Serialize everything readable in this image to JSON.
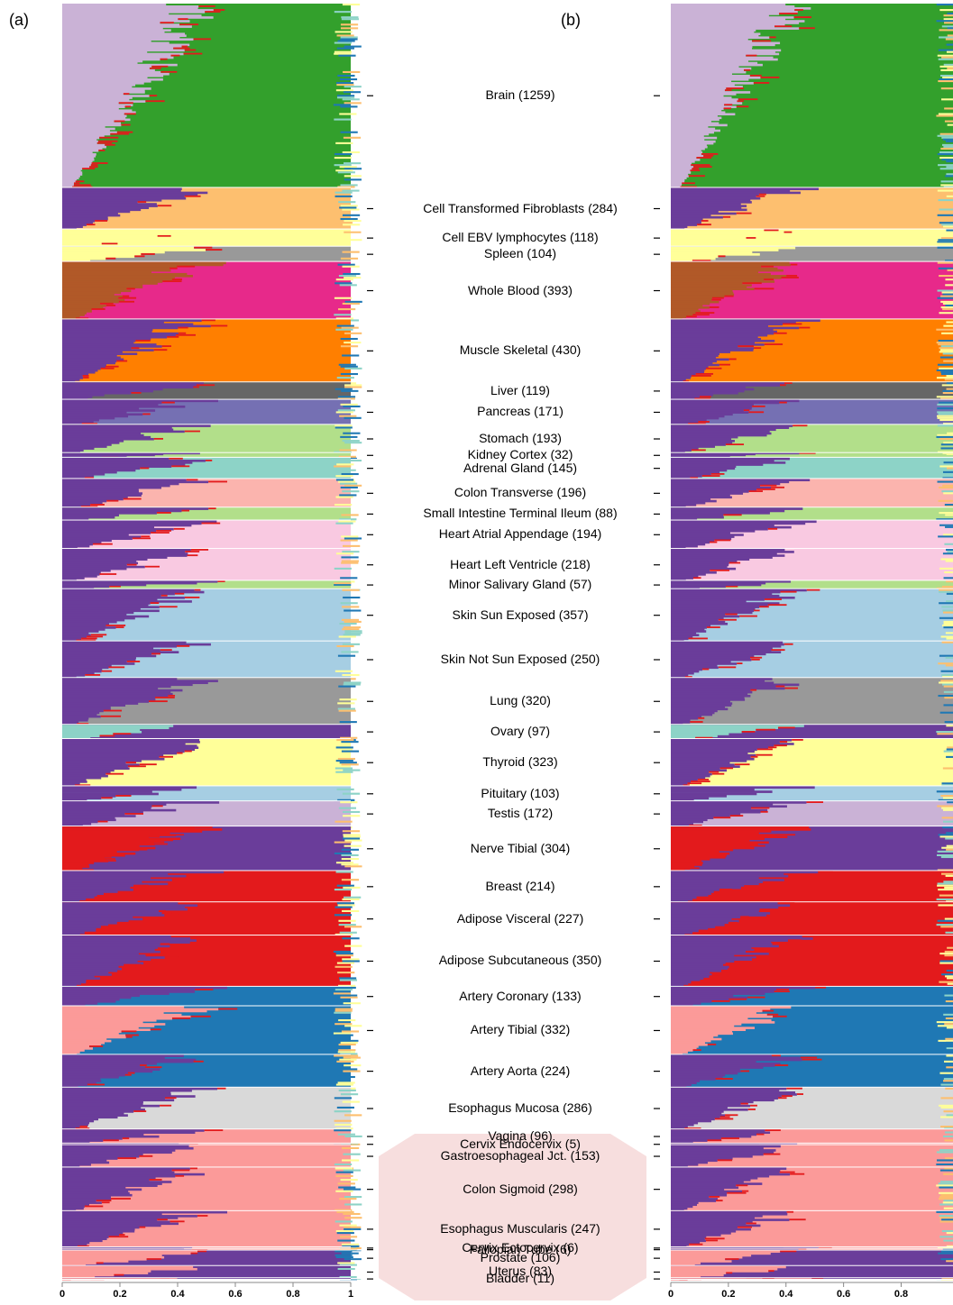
{
  "panel_labels": {
    "a": "(a)",
    "b": "(b)"
  },
  "chart_data": {
    "type": "stacked-bar",
    "orientation": "horizontal",
    "description_of_axes": "x axis: ancestry-style component proportion per sample; rows grouped by tissue",
    "xlim": [
      0,
      1
    ],
    "xticks": [
      "0",
      "0.2",
      "0.4",
      "0.6",
      "0.8",
      "1"
    ],
    "xticks_b": [
      "0",
      "0.2",
      "0.4",
      "0.6",
      "0.8"
    ],
    "component_colors": {
      "green": "#33a02c",
      "lavender": "#cab2d6",
      "light_orange": "#fdbf6f",
      "light_yellow": "#ffff99",
      "gray": "#999999",
      "brown": "#b15928",
      "magenta": "#e7298a",
      "orange": "#ff7f00",
      "dark_gray": "#666666",
      "slate_blue": "#7570b3",
      "light_green": "#b2df8a",
      "teal": "#8dd3c7",
      "pink_light": "#fbb4ae",
      "pink": "#f9c9e1",
      "sky": "#a6cee3",
      "purple": "#6a3d9a",
      "red": "#e31a1c",
      "blue": "#1f78b4",
      "salmon": "#fb9a99",
      "light_gray": "#d9d9d9"
    },
    "tissues": [
      {
        "label": "Brain (1259)",
        "n": 1259,
        "fill": "green",
        "secondary": "lavender"
      },
      {
        "label": "Cell Transformed Fibroblasts (284)",
        "n": 284,
        "fill": "light_orange",
        "secondary": "purple"
      },
      {
        "label": "Cell EBV lymphocytes (118)",
        "n": 118,
        "fill": "light_yellow",
        "secondary": "light_yellow"
      },
      {
        "label": "Spleen (104)",
        "n": 104,
        "fill": "gray",
        "secondary": "light_yellow"
      },
      {
        "label": "Whole Blood (393)",
        "n": 393,
        "fill": "magenta",
        "secondary": "brown"
      },
      {
        "label": "Muscle Skeletal (430)",
        "n": 430,
        "fill": "orange",
        "secondary": "purple"
      },
      {
        "label": "Liver (119)",
        "n": 119,
        "fill": "dark_gray",
        "secondary": "purple"
      },
      {
        "label": "Pancreas (171)",
        "n": 171,
        "fill": "slate_blue",
        "secondary": "purple"
      },
      {
        "label": "Stomach (193)",
        "n": 193,
        "fill": "light_green",
        "secondary": "purple"
      },
      {
        "label": "Kidney Cortex (32)",
        "n": 32,
        "fill": "light_green",
        "secondary": "purple"
      },
      {
        "label": "Adrenal Gland (145)",
        "n": 145,
        "fill": "teal",
        "secondary": "purple"
      },
      {
        "label": "Colon Transverse (196)",
        "n": 196,
        "fill": "pink_light",
        "secondary": "purple"
      },
      {
        "label": "Small Intestine Terminal Ileum (88)",
        "n": 88,
        "fill": "light_green",
        "secondary": "purple"
      },
      {
        "label": "Heart Atrial Appendage (194)",
        "n": 194,
        "fill": "pink",
        "secondary": "purple"
      },
      {
        "label": "Heart Left Ventricle (218)",
        "n": 218,
        "fill": "pink",
        "secondary": "purple"
      },
      {
        "label": "Minor Salivary Gland (57)",
        "n": 57,
        "fill": "light_green",
        "secondary": "purple"
      },
      {
        "label": "Skin Sun Exposed (357)",
        "n": 357,
        "fill": "sky",
        "secondary": "purple"
      },
      {
        "label": "Skin Not Sun Exposed (250)",
        "n": 250,
        "fill": "sky",
        "secondary": "purple"
      },
      {
        "label": "Lung (320)",
        "n": 320,
        "fill": "gray",
        "secondary": "purple"
      },
      {
        "label": "Ovary (97)",
        "n": 97,
        "fill": "purple",
        "secondary": "teal"
      },
      {
        "label": "Thyroid (323)",
        "n": 323,
        "fill": "light_yellow",
        "secondary": "purple"
      },
      {
        "label": "Pituitary (103)",
        "n": 103,
        "fill": "sky",
        "secondary": "purple"
      },
      {
        "label": "Testis (172)",
        "n": 172,
        "fill": "lavender",
        "secondary": "purple"
      },
      {
        "label": "Nerve Tibial (304)",
        "n": 304,
        "fill": "purple",
        "secondary": "red"
      },
      {
        "label": "Breast (214)",
        "n": 214,
        "fill": "red",
        "secondary": "purple"
      },
      {
        "label": "Adipose Visceral  (227)",
        "n": 227,
        "fill": "red",
        "secondary": "purple"
      },
      {
        "label": "Adipose Subcutaneous  (350)",
        "n": 350,
        "fill": "red",
        "secondary": "purple"
      },
      {
        "label": "Artery Coronary (133)",
        "n": 133,
        "fill": "blue",
        "secondary": "purple"
      },
      {
        "label": "Artery Tibial (332)",
        "n": 332,
        "fill": "blue",
        "secondary": "salmon"
      },
      {
        "label": "Artery Aorta  (224)",
        "n": 224,
        "fill": "blue",
        "secondary": "purple"
      },
      {
        "label": "Esophagus Mucosa (286)",
        "n": 286,
        "fill": "light_gray",
        "secondary": "purple"
      },
      {
        "label": "Vagina (96)",
        "n": 96,
        "fill": "salmon",
        "secondary": "purple"
      },
      {
        "label": "Cervix Endocervix (5)",
        "n": 5,
        "fill": "salmon",
        "secondary": "purple"
      },
      {
        "label": "Gastroesophageal Jct. (153)",
        "n": 153,
        "fill": "salmon",
        "secondary": "purple"
      },
      {
        "label": "Colon Sigmoid (298)",
        "n": 298,
        "fill": "salmon",
        "secondary": "purple"
      },
      {
        "label": "Esophagus Muscularis (247)",
        "n": 247,
        "fill": "salmon",
        "secondary": "purple"
      },
      {
        "label": "Cervix Ectocervix (6)",
        "n": 6,
        "fill": "salmon",
        "secondary": "purple"
      },
      {
        "label": "Fallopian Tube (6)",
        "n": 6,
        "fill": "salmon",
        "secondary": "purple"
      },
      {
        "label": "Prostate (106)",
        "n": 106,
        "fill": "purple",
        "secondary": "salmon"
      },
      {
        "label": "Uterus (83)",
        "n": 83,
        "fill": "purple",
        "secondary": "salmon"
      },
      {
        "label": "Bladder (11)",
        "n": 11,
        "fill": "purple",
        "secondary": "salmon"
      }
    ]
  }
}
